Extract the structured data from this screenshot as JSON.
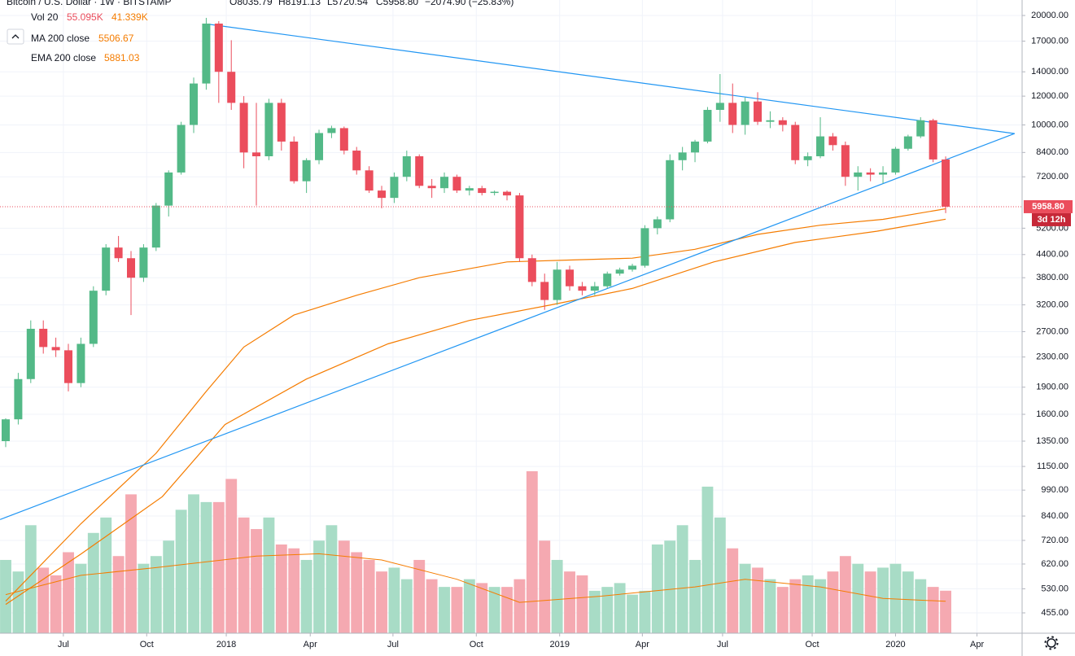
{
  "chart_data": {
    "type": "candlestick",
    "title": "Bitcoin / U.S. Dollar · 1W · BITSTAMP",
    "ohlc_header": [
      "O8035.79",
      "H8191.13",
      "L5720.54",
      "C5958.80",
      "−2074.90 (−25.83%)"
    ],
    "x": [
      0,
      2,
      4,
      6,
      8,
      10,
      12,
      14,
      16,
      18,
      20,
      22,
      24,
      26,
      28,
      30,
      32,
      34,
      36,
      38,
      40,
      42,
      44,
      46,
      48,
      50,
      52,
      54,
      56,
      58,
      60,
      62,
      64,
      66,
      68,
      70,
      72,
      74,
      76,
      78,
      80,
      82,
      84,
      86,
      88,
      90,
      92,
      94,
      96,
      98,
      100,
      102,
      104,
      106,
      108,
      110,
      112,
      114,
      116,
      118,
      120,
      122,
      124,
      126,
      128,
      130,
      132,
      134,
      136,
      138,
      140,
      142,
      144,
      146,
      148,
      150
    ],
    "open": [
      1350,
      1550,
      2000,
      2750,
      2450,
      2400,
      1950,
      2500,
      3500,
      4600,
      4300,
      3800,
      4600,
      6000,
      7400,
      10000,
      13000,
      19000,
      14000,
      11500,
      8400,
      8200,
      11500,
      9000,
      7000,
      8000,
      9500,
      9800,
      8500,
      7500,
      6600,
      6300,
      7200,
      8200,
      6800,
      6700,
      7200,
      6600,
      6700,
      6500,
      6550,
      6400,
      4300,
      3700,
      3300,
      4000,
      3600,
      3500,
      3600,
      3900,
      4000,
      4100,
      5200,
      5500,
      8000,
      8400,
      9000,
      11000,
      11500,
      10000,
      11600,
      10200,
      10300,
      10000,
      8000,
      8200,
      9300,
      8800,
      7200,
      7400,
      7300,
      7400,
      8600,
      9300,
      10300,
      8035.79
    ],
    "high": [
      1560,
      2080,
      2900,
      2900,
      2600,
      2500,
      2600,
      3600,
      4700,
      4950,
      4500,
      4700,
      6100,
      7500,
      10200,
      13500,
      19700,
      19300,
      17100,
      12000,
      11500,
      11800,
      11800,
      9300,
      8100,
      9700,
      9950,
      9900,
      8700,
      7700,
      6800,
      7400,
      8500,
      8300,
      7100,
      7400,
      7300,
      6800,
      6800,
      6600,
      6600,
      6500,
      4400,
      3900,
      4200,
      4100,
      3700,
      3700,
      3950,
      4050,
      4150,
      5300,
      5600,
      8300,
      8700,
      9100,
      11200,
      13800,
      13000,
      11900,
      12300,
      10900,
      10500,
      10200,
      8400,
      10500,
      9500,
      9000,
      7700,
      7600,
      7700,
      8700,
      9400,
      10500,
      10400,
      8191.13
    ],
    "low": [
      1300,
      1500,
      1950,
      2350,
      2300,
      1850,
      1900,
      2450,
      3400,
      4200,
      3000,
      3700,
      4500,
      5600,
      7300,
      9500,
      12500,
      11500,
      11000,
      7600,
      6000,
      8000,
      8500,
      6900,
      6500,
      7800,
      9200,
      8300,
      7300,
      6500,
      5900,
      6100,
      7000,
      6700,
      6300,
      6500,
      6500,
      6400,
      6400,
      6400,
      6200,
      4200,
      3600,
      3100,
      3200,
      3500,
      3400,
      3400,
      3550,
      3850,
      3950,
      4050,
      5000,
      5400,
      7500,
      7900,
      8900,
      10200,
      9500,
      9400,
      10000,
      9800,
      9600,
      7800,
      7700,
      8100,
      8500,
      6800,
      6600,
      7000,
      6900,
      7300,
      8500,
      9200,
      7900,
      5720.54
    ],
    "close": [
      1550,
      2000,
      2750,
      2450,
      2400,
      1950,
      2500,
      3500,
      4600,
      4300,
      3800,
      4600,
      6000,
      7400,
      10000,
      13000,
      19000,
      14000,
      11500,
      8400,
      8200,
      11500,
      9000,
      7000,
      8000,
      9500,
      9800,
      8500,
      7500,
      6600,
      6300,
      7200,
      8200,
      6800,
      6700,
      7200,
      6600,
      6700,
      6500,
      6550,
      6400,
      4300,
      3700,
      3300,
      4000,
      3600,
      3500,
      3600,
      3900,
      4000,
      4100,
      5200,
      5500,
      8000,
      8400,
      9000,
      11000,
      11500,
      10000,
      11600,
      10200,
      10300,
      10000,
      8000,
      8200,
      9300,
      8800,
      7200,
      7400,
      7300,
      7400,
      8600,
      9300,
      10300,
      8035.79,
      5958.8
    ],
    "colors": {
      "up": "#53b987",
      "down": "#eb4d5c",
      "volume_up": "#a8dcc6",
      "volume_down": "#f5a9b1"
    },
    "log_scale": true,
    "grid": true,
    "ylim": [
      400,
      22060
    ],
    "yticks": [
      {
        "value": 20000,
        "label": "20000.00"
      },
      {
        "value": 17000,
        "label": "17000.00"
      },
      {
        "value": 14000,
        "label": "14000.00"
      },
      {
        "value": 12000,
        "label": "12000.00"
      },
      {
        "value": 10000,
        "label": "10000.00"
      },
      {
        "value": 8400,
        "label": "8400.00"
      },
      {
        "value": 7200,
        "label": "7200.00"
      },
      {
        "value": 5200,
        "label": "5200.00"
      },
      {
        "value": 4400,
        "label": "4400.00"
      },
      {
        "value": 3800,
        "label": "3800.00"
      },
      {
        "value": 3200,
        "label": "3200.00"
      },
      {
        "value": 2700,
        "label": "2700.00"
      },
      {
        "value": 2300,
        "label": "2300.00"
      },
      {
        "value": 1900,
        "label": "1900.00"
      },
      {
        "value": 1600,
        "label": "1600.00"
      },
      {
        "value": 1350,
        "label": "1350.00"
      },
      {
        "value": 1150,
        "label": "1150.00"
      },
      {
        "value": 990,
        "label": "990.00"
      },
      {
        "value": 840,
        "label": "840.00"
      },
      {
        "value": 720,
        "label": "720.00"
      },
      {
        "value": 620,
        "label": "620.00"
      },
      {
        "value": 530,
        "label": "530.00"
      },
      {
        "value": 455,
        "label": "455.00"
      }
    ],
    "xlim": [
      -0.91,
      162.2
    ],
    "xticks": [
      {
        "value": 9.2,
        "label": "Jul"
      },
      {
        "value": 22.5,
        "label": "Oct"
      },
      {
        "value": 35.2,
        "label": "2018"
      },
      {
        "value": 48.6,
        "label": "Apr"
      },
      {
        "value": 61.8,
        "label": "Jul"
      },
      {
        "value": 75.1,
        "label": "Oct"
      },
      {
        "value": 88.4,
        "label": "2019"
      },
      {
        "value": 101.6,
        "label": "Apr"
      },
      {
        "value": 114.4,
        "label": "Jul"
      },
      {
        "value": 128.7,
        "label": "Oct"
      },
      {
        "value": 142,
        "label": "2020"
      },
      {
        "value": 155,
        "label": "Apr"
      }
    ],
    "volume": {
      "name": "Vol 20",
      "legend_values": [
        "55.095K",
        "41.339K"
      ],
      "vlim": [
        0,
        230
      ],
      "values": [
        95,
        80,
        140,
        85,
        75,
        105,
        90,
        130,
        150,
        100,
        180,
        90,
        100,
        120,
        160,
        180,
        170,
        170,
        200,
        150,
        135,
        150,
        115,
        110,
        95,
        120,
        140,
        120,
        105,
        95,
        80,
        85,
        70,
        95,
        70,
        60,
        60,
        70,
        65,
        60,
        60,
        70,
        210,
        120,
        95,
        80,
        75,
        55,
        60,
        65,
        50,
        55,
        115,
        120,
        140,
        95,
        190,
        150,
        110,
        90,
        85,
        70,
        60,
        70,
        75,
        70,
        80,
        100,
        90,
        80,
        85,
        90,
        80,
        70,
        60,
        55.095
      ],
      "ma": {
        "color": "#f57c00",
        "x": [
          0,
          12,
          24,
          40,
          50,
          60,
          72,
          82,
          95,
          110,
          118,
          130,
          140,
          150
        ],
        "values": [
          50,
          75,
          85,
          100,
          103,
          95,
          70,
          40,
          48,
          60,
          70,
          60,
          45,
          41.339
        ]
      }
    },
    "indicators": [
      {
        "name": "MA 200 close",
        "value_label": "5506.67",
        "color": "#f57c00",
        "x": [
          0,
          12,
          25,
          35,
          48,
          61,
          74,
          87,
          100,
          113,
          126,
          139,
          150
        ],
        "values": [
          480,
          660,
          950,
          1500,
          2000,
          2500,
          2900,
          3200,
          3550,
          4200,
          4750,
          5100,
          5506.67
        ]
      },
      {
        "name": "EMA 200 close",
        "value_label": "5881.03",
        "color": "#f57c00",
        "x": [
          0,
          12,
          24,
          32,
          38,
          46,
          56,
          66,
          80,
          90,
          100,
          110,
          120,
          130,
          140,
          150
        ],
        "values": [
          490,
          800,
          1250,
          1850,
          2450,
          3000,
          3400,
          3800,
          4200,
          4250,
          4300,
          4550,
          5000,
          5300,
          5500,
          5881.03
        ]
      }
    ],
    "trendlines": [
      {
        "color": "#2196f3",
        "x": [
          -0.9,
          161
        ],
        "values": [
          822,
          9470
        ]
      },
      {
        "color": "#2196f3",
        "x": [
          32.6,
          161
        ],
        "values": [
          18900,
          9470
        ]
      }
    ],
    "last_price": {
      "value": 5958.8,
      "label": "5958.80"
    },
    "countdown": "3d 12h"
  }
}
